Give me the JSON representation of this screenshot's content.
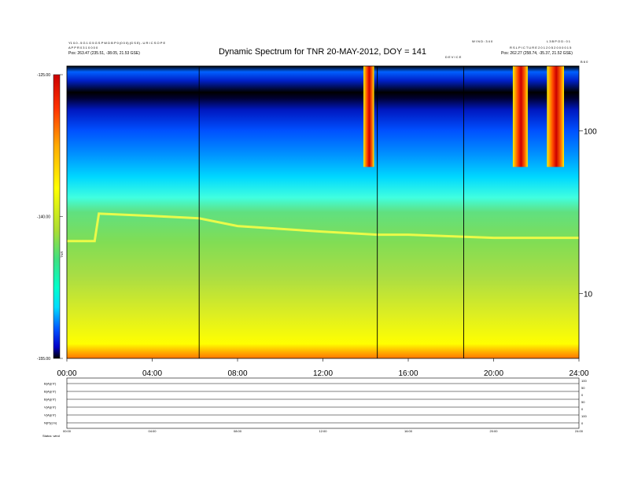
{
  "header": {
    "left_line1": "Y1 0.0 - 5 G 1 G 5 G S P W D B P 0 (0 0 0) (G S E) - U R I C S O P E",
    "left_line2": "A P P R 0 3 1 0 0 0 0",
    "left_line3": "Pos:    263.47 (235.51, -38.05, 21.53 GSE)",
    "right_line1": "W I N D : 3 4 0",
    "right_line2": "L 3 B P O D : 0 1",
    "right_line3": "R S L P I C T U R E   2 0 1 2 0 5 2 0   0 0 0 1 5",
    "right_line4": "Pos:    262.27 (258.74, -35.37, 21.52 GSE)",
    "center_small": "D E V I C E",
    "corner_small": "B 6 0"
  },
  "chart_data": {
    "type": "heatmap",
    "title": "Dynamic Spectrum for TNR 20-MAY-2012, DOY = 141",
    "colorbar": {
      "label": "TNR",
      "ticks": [
        "-125.00",
        "-140.00",
        "-155.00"
      ],
      "range": [
        -155,
        -125
      ],
      "colors": [
        "#000000",
        "#0000c8",
        "#0050ff",
        "#00dcff",
        "#00ffcc",
        "#40e080",
        "#aadd33",
        "#ffff00",
        "#ffaa00",
        "#ff3300",
        "#cc0000"
      ]
    },
    "x": {
      "ticks": [
        "00:00",
        "04:00",
        "08:00",
        "12:00",
        "16:00",
        "20:00",
        "24:00"
      ],
      "tick_hours": [
        0,
        4,
        8,
        12,
        16,
        20,
        24
      ],
      "range_hours": [
        0,
        24
      ]
    },
    "y_right": {
      "ticks": [
        "100",
        "10"
      ],
      "tick_values": [
        100,
        10
      ],
      "scale": "log",
      "range": [
        4,
        250
      ]
    },
    "vertical_markers_hours": [
      6.2,
      14.55,
      18.6
    ],
    "features": {
      "plasma_line_khz": [
        [
          0,
          21
        ],
        [
          1.3,
          21
        ],
        [
          1.5,
          31
        ],
        [
          4,
          30
        ],
        [
          6.2,
          29
        ],
        [
          8,
          26
        ],
        [
          12,
          24
        ],
        [
          14.55,
          23
        ],
        [
          16,
          23
        ],
        [
          20,
          22
        ],
        [
          24,
          22
        ]
      ],
      "bursts": [
        {
          "start_h": 13.9,
          "end_h": 14.4,
          "top_khz": 250,
          "bottom_khz": 60
        },
        {
          "start_h": 20.9,
          "end_h": 21.6,
          "top_khz": 250,
          "bottom_khz": 60
        },
        {
          "start_h": 22.5,
          "end_h": 23.3,
          "top_khz": 250,
          "bottom_khz": 60
        }
      ]
    },
    "bottom_panel": {
      "labels": [
        "B(A)(nT)",
        "B(A)(nT)",
        "B(A)(nT)",
        "V(A)(nT)",
        "V(A)(nT)",
        "N(P)(cm)"
      ],
      "right_ticks": [
        "100",
        "50",
        "0",
        "50",
        "0",
        "100",
        "0"
      ],
      "x_ticks": [
        "00:00",
        "04:00",
        "08:00",
        "12:00",
        "16:00",
        "20:00",
        "24:00"
      ],
      "footer_label": "Status: wind"
    }
  }
}
